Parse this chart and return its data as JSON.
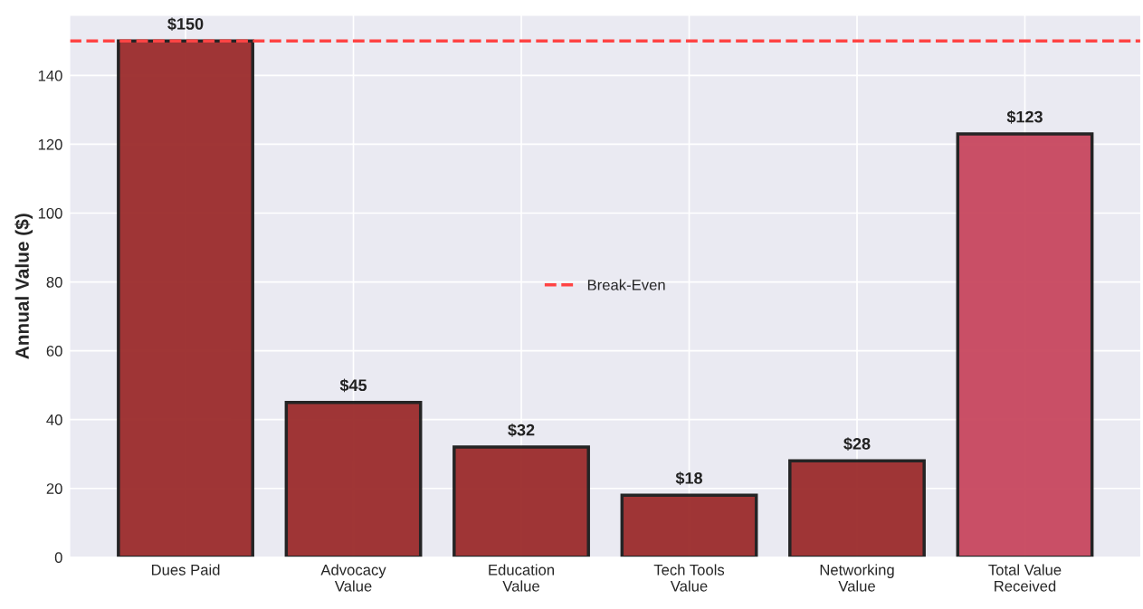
{
  "chart_data": {
    "type": "bar",
    "ylabel": "Annual Value ($)",
    "categories": [
      "Dues Paid",
      "Advocacy\nValue",
      "Education\nValue",
      "Tech Tools\nValue",
      "Networking\nValue",
      "Total Value\nReceived"
    ],
    "values": [
      150,
      45,
      32,
      18,
      28,
      123
    ],
    "colors": [
      "#9b2c2c",
      "#9b2c2c",
      "#9b2c2c",
      "#9b2c2c",
      "#9b2c2c",
      "#c8475e"
    ],
    "value_labels": [
      "$150",
      "$45",
      "$32",
      "$18",
      "$28",
      "$123"
    ],
    "ylim": [
      0,
      157.5
    ],
    "yticks": [
      0,
      20,
      40,
      60,
      80,
      100,
      120,
      140
    ],
    "ref_lines": [
      {
        "axis": "y",
        "value": 150,
        "label": "Break-Even",
        "color": "#ff4444",
        "line_style": "dashed"
      }
    ],
    "grid": true,
    "legend": "center"
  }
}
